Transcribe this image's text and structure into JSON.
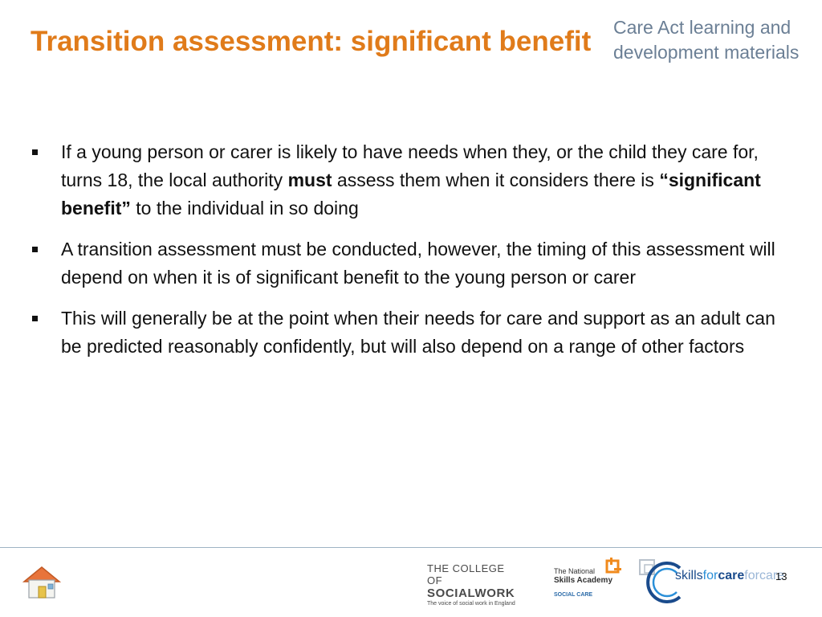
{
  "slide": {
    "title": "Transition assessment: significant benefit",
    "brand_line1": "Care Act learning and",
    "brand_line2": "development materials",
    "bullets": [
      {
        "p1": "If a young person or carer is likely to have needs when they, or the child they care for, turns 18, the local authority ",
        "b1": "must",
        "p2": " assess them when it considers there is ",
        "b2": "“significant benefit”",
        "p3": " to the individual in so doing"
      },
      {
        "text": "A transition assessment must be conducted, however, the timing of this assessment will depend on when it is of significant benefit to the young person or carer"
      },
      {
        "text": "This will generally be at the point when their needs for care and support as an adult can be predicted reasonably confidently, but will also depend on a range of other factors"
      }
    ],
    "page_number": "13"
  },
  "footer": {
    "home_icon": "home-icon",
    "college_l1": "THE COLLEGE OF",
    "college_l2": "SOCIALWORK",
    "college_l3": "The voice of social work in England",
    "nsa_l1": "The National",
    "nsa_l2": "Skills Academy",
    "nsa_l3": "SOCIAL CARE",
    "sfc_skills": "skills",
    "sfc_for": "for",
    "sfc_care": "care",
    "sfc_ghost": "forcare"
  },
  "colors": {
    "title": "#e07b1a",
    "brand": "#6b7f95",
    "nsa_accent": "#f08a1c",
    "sfc_blue": "#1a4b8c"
  }
}
